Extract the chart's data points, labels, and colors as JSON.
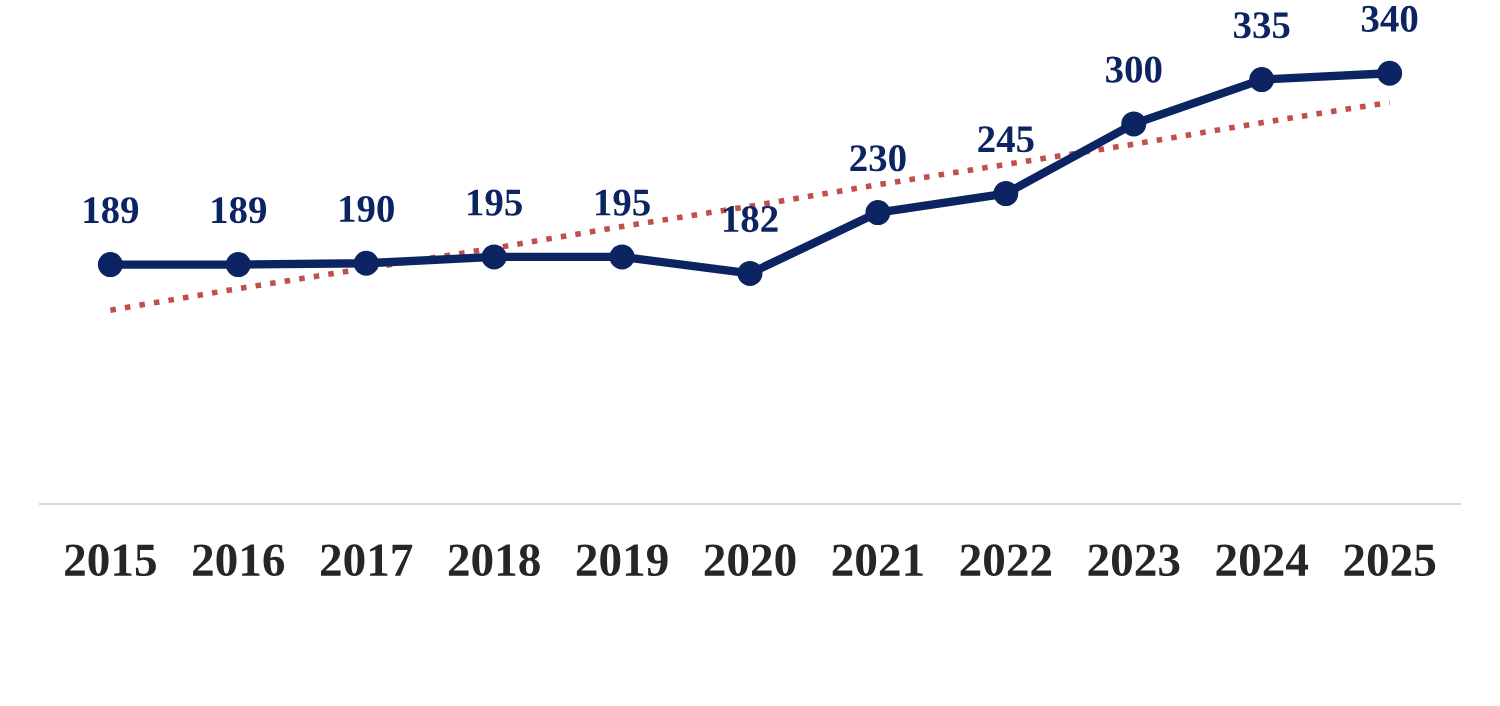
{
  "chart_data": {
    "type": "line",
    "categories": [
      "2015",
      "2016",
      "2017",
      "2018",
      "2019",
      "2020",
      "2021",
      "2022",
      "2023",
      "2024",
      "2025"
    ],
    "series": [
      {
        "color": "#0c2461",
        "values": [
          189,
          189,
          190,
          195,
          195,
          182,
          230,
          245,
          300,
          335,
          340
        ],
        "marker": "circle",
        "line_style": "solid",
        "data_labels": true
      },
      {
        "type": "line",
        "color": "#c0504d",
        "values": [
          153,
          170,
          186,
          202,
          219,
          235,
          252,
          268,
          284,
          301,
          317
        ],
        "marker": "none",
        "line_style": "dotted"
      }
    ],
    "tick_labels": "x",
    "grid": false,
    "legend": false
  }
}
